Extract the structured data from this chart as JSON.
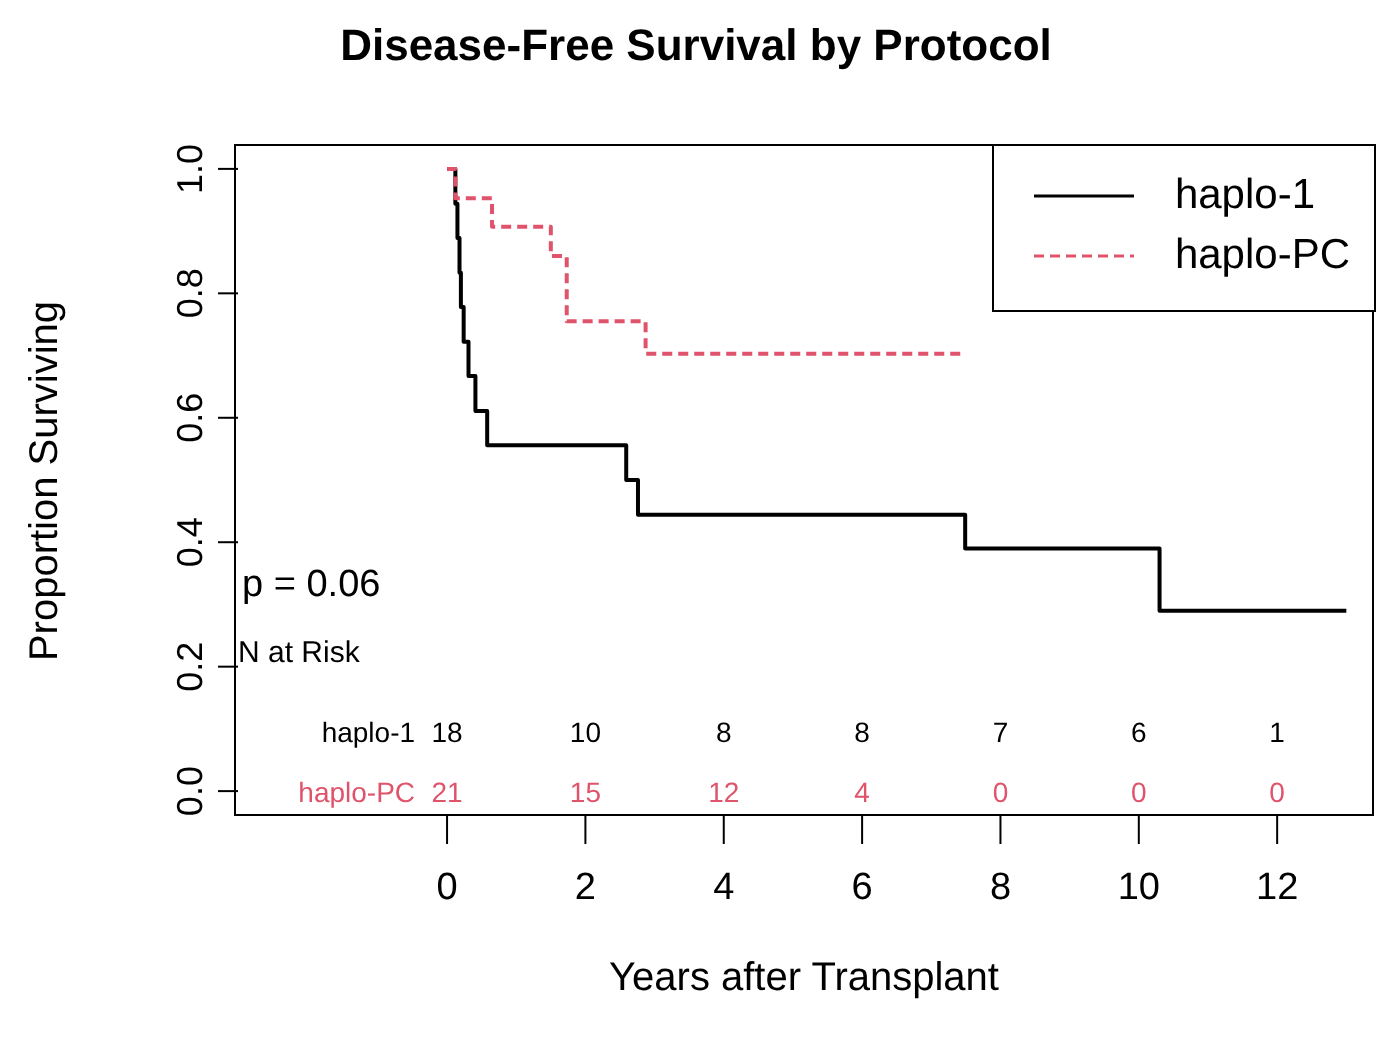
{
  "chart_data": {
    "type": "step",
    "title": "Disease-Free Survival by Protocol",
    "xlabel": "Years after Transplant",
    "ylabel": "Proportion Surviving",
    "xlim": [
      -3.08,
      13.4
    ],
    "ylim": [
      -0.04,
      1.04
    ],
    "xticks": [
      0,
      2,
      4,
      6,
      8,
      10,
      12
    ],
    "yticks": [
      {
        "value": 0,
        "label": "0.0"
      },
      {
        "value": 0.2,
        "label": "0.2"
      },
      {
        "value": 0.4,
        "label": "0.4"
      },
      {
        "value": 0.6,
        "label": "0.6"
      },
      {
        "value": 0.8,
        "label": "0.8"
      },
      {
        "value": 1,
        "label": "1.0"
      }
    ],
    "grid": false,
    "legend": "top right",
    "marker": "none",
    "series": [
      {
        "name": "haplo-1",
        "color": "#000000",
        "line_style": "solid",
        "x": [
          0,
          0.12,
          0.15,
          0.18,
          0.2,
          0.24,
          0.31,
          0.41,
          0.58,
          2.59,
          2.76,
          7.49,
          10.3,
          13.0
        ],
        "values": [
          1,
          0.944,
          0.889,
          0.833,
          0.778,
          0.722,
          0.667,
          0.611,
          0.556,
          0.5,
          0.444,
          0.39,
          0.29,
          0.29
        ]
      },
      {
        "name": "haplo-PC",
        "color": "#df536b",
        "line_style": "dashed",
        "x": [
          0,
          0.12,
          0.65,
          1.5,
          1.73,
          2.87,
          7.45
        ],
        "values": [
          1,
          0.953,
          0.907,
          0.86,
          0.755,
          0.703,
          0.703
        ]
      }
    ],
    "annotations": [
      "p = 0.06",
      "N at Risk",
      "haplo-1",
      "18",
      "10",
      "8",
      "8",
      "7",
      "6",
      "1",
      "haplo-PC",
      "21",
      "15",
      "12",
      "4",
      "0",
      "0",
      "0"
    ]
  }
}
